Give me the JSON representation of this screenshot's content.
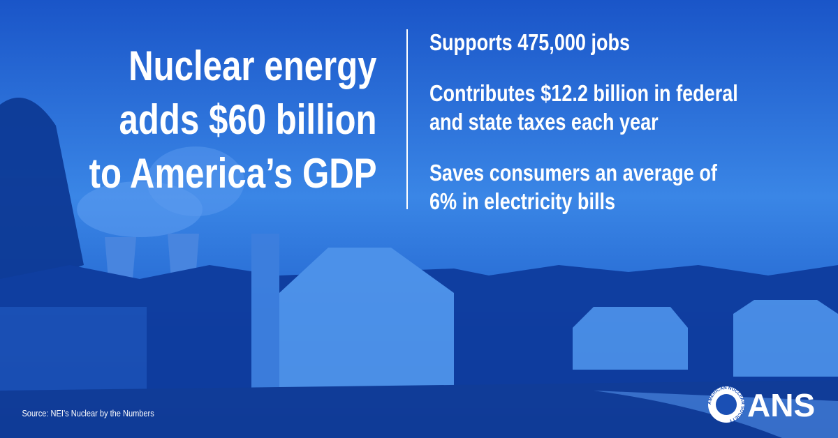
{
  "headline": {
    "lines": [
      "Nuclear energy",
      "adds $60 billion",
      "to America’s GDP"
    ]
  },
  "points": [
    {
      "lines": [
        "Supports 475,000 jobs"
      ]
    },
    {
      "lines": [
        "Contributes $12.2 billion in federal",
        "and state taxes each year"
      ]
    },
    {
      "lines": [
        "Saves consumers an average of",
        "6% in electricity bills"
      ]
    }
  ],
  "source": "Source: NEI’s Nuclear by the Numbers",
  "logo": {
    "name": "ANS",
    "ring": "AMERICAN NUCLEAR SOCIETY"
  }
}
